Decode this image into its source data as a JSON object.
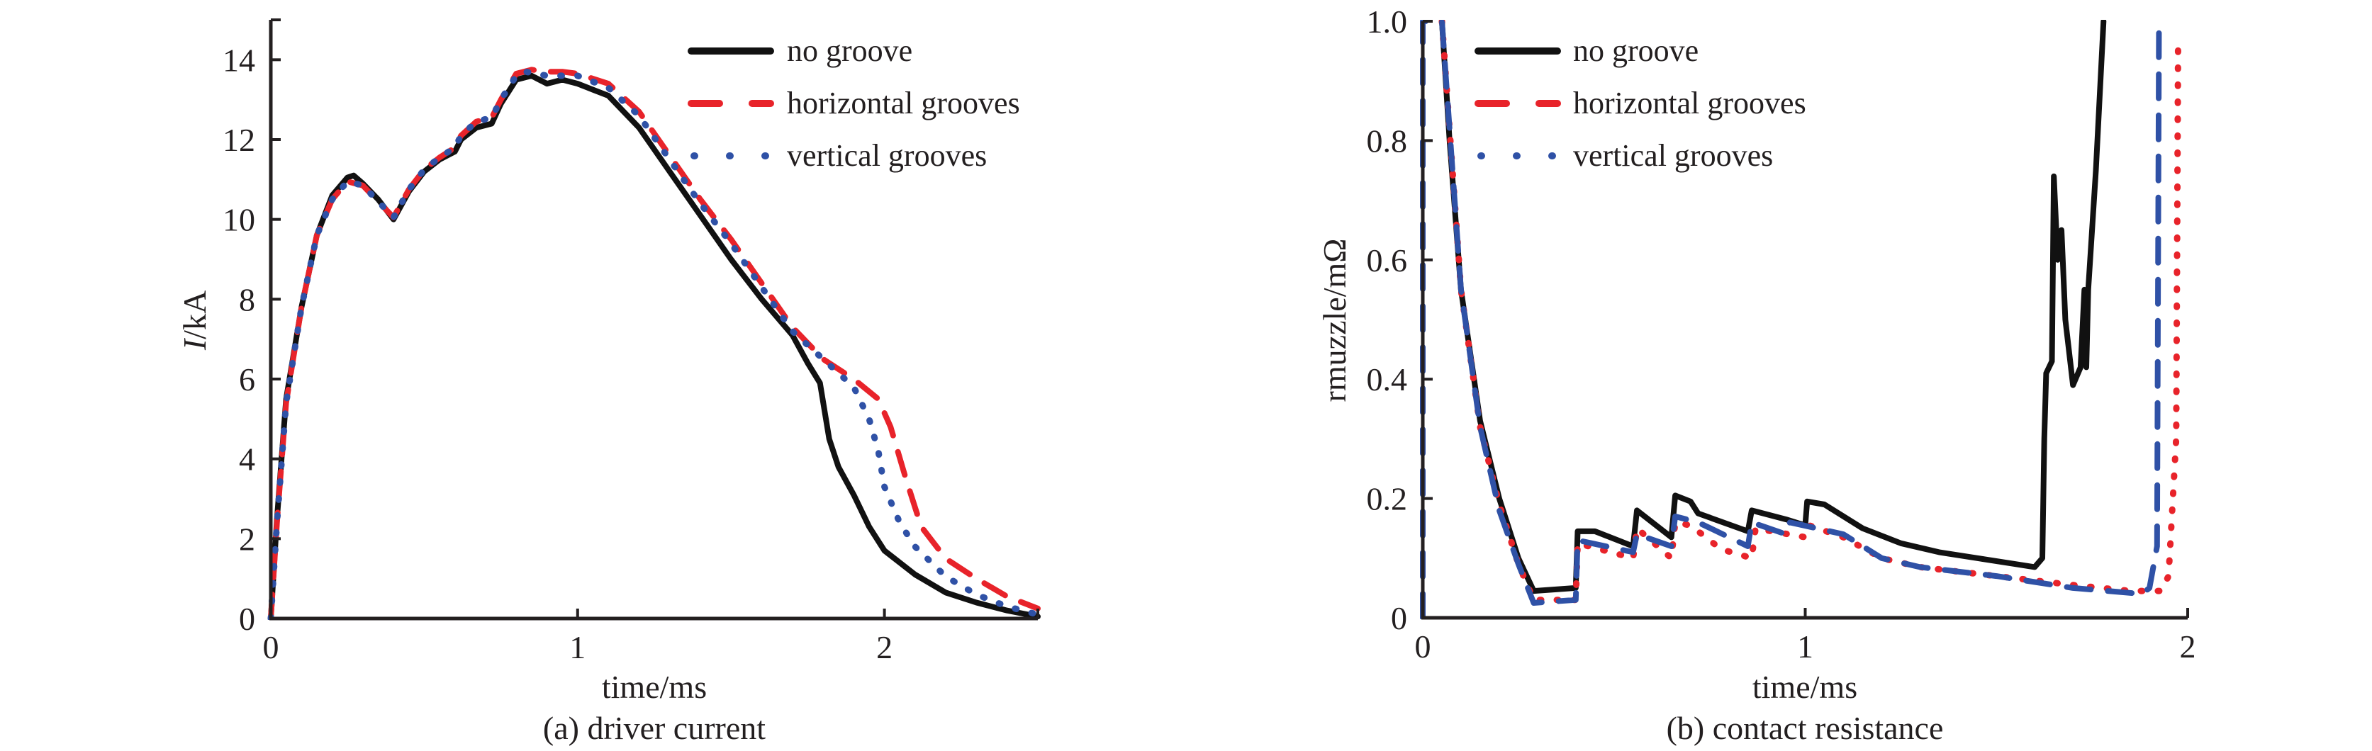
{
  "colors": {
    "no_groove": "#111111",
    "horizontal": "#e8232a",
    "vertical": "#2f51a6",
    "axis": "#231f20"
  },
  "chart_data": [
    {
      "type": "line",
      "id": "driver-current",
      "caption": "(a) driver current",
      "xlabel": "time/ms",
      "ylabel_italic": "I",
      "ylabel_rest": "/kA",
      "xlim": [
        0,
        2.5
      ],
      "ylim": [
        0,
        15
      ],
      "xticks": [
        0,
        1,
        2
      ],
      "xtick_labels": [
        "0",
        "1",
        "2"
      ],
      "yticks": [
        0,
        2,
        4,
        6,
        8,
        10,
        12,
        14
      ],
      "ytick_labels": [
        "0",
        "2",
        "4",
        "6",
        "8",
        "10",
        "12",
        "14"
      ],
      "grid": false,
      "legend_position": "top-right",
      "legend": [
        "no groove",
        "horizontal grooves",
        "vertical grooves"
      ],
      "series": [
        {
          "name": "no groove",
          "style": "solid",
          "color_key": "no_groove",
          "points": [
            [
              0,
              0
            ],
            [
              0.02,
              2.5
            ],
            [
              0.05,
              5.5
            ],
            [
              0.1,
              7.8
            ],
            [
              0.15,
              9.6
            ],
            [
              0.2,
              10.6
            ],
            [
              0.25,
              11.05
            ],
            [
              0.27,
              11.1
            ],
            [
              0.3,
              10.9
            ],
            [
              0.35,
              10.5
            ],
            [
              0.4,
              10.0
            ],
            [
              0.45,
              10.7
            ],
            [
              0.5,
              11.2
            ],
            [
              0.55,
              11.5
            ],
            [
              0.6,
              11.7
            ],
            [
              0.62,
              12.0
            ],
            [
              0.67,
              12.3
            ],
            [
              0.72,
              12.4
            ],
            [
              0.75,
              12.9
            ],
            [
              0.8,
              13.5
            ],
            [
              0.85,
              13.6
            ],
            [
              0.9,
              13.4
            ],
            [
              0.95,
              13.5
            ],
            [
              1.0,
              13.4
            ],
            [
              1.05,
              13.25
            ],
            [
              1.1,
              13.1
            ],
            [
              1.2,
              12.3
            ],
            [
              1.3,
              11.2
            ],
            [
              1.4,
              10.1
            ],
            [
              1.5,
              9.0
            ],
            [
              1.6,
              8.0
            ],
            [
              1.7,
              7.1
            ],
            [
              1.75,
              6.4
            ],
            [
              1.79,
              5.9
            ],
            [
              1.82,
              4.5
            ],
            [
              1.85,
              3.8
            ],
            [
              1.9,
              3.1
            ],
            [
              1.95,
              2.3
            ],
            [
              2.0,
              1.7
            ],
            [
              2.1,
              1.1
            ],
            [
              2.2,
              0.65
            ],
            [
              2.3,
              0.4
            ],
            [
              2.4,
              0.2
            ],
            [
              2.5,
              0.05
            ]
          ]
        },
        {
          "name": "horizontal grooves",
          "style": "dashed",
          "color_key": "horizontal",
          "points": [
            [
              0,
              0
            ],
            [
              0.02,
              2.4
            ],
            [
              0.05,
              5.4
            ],
            [
              0.1,
              7.8
            ],
            [
              0.15,
              9.6
            ],
            [
              0.2,
              10.5
            ],
            [
              0.25,
              10.95
            ],
            [
              0.3,
              10.85
            ],
            [
              0.35,
              10.45
            ],
            [
              0.4,
              10.05
            ],
            [
              0.45,
              10.75
            ],
            [
              0.5,
              11.25
            ],
            [
              0.55,
              11.55
            ],
            [
              0.6,
              11.8
            ],
            [
              0.62,
              12.1
            ],
            [
              0.67,
              12.45
            ],
            [
              0.72,
              12.55
            ],
            [
              0.75,
              13.0
            ],
            [
              0.8,
              13.65
            ],
            [
              0.85,
              13.75
            ],
            [
              0.9,
              13.7
            ],
            [
              0.95,
              13.7
            ],
            [
              1.0,
              13.65
            ],
            [
              1.1,
              13.4
            ],
            [
              1.2,
              12.7
            ],
            [
              1.3,
              11.6
            ],
            [
              1.4,
              10.5
            ],
            [
              1.5,
              9.5
            ],
            [
              1.6,
              8.4
            ],
            [
              1.7,
              7.3
            ],
            [
              1.8,
              6.5
            ],
            [
              1.9,
              6.0
            ],
            [
              1.98,
              5.5
            ],
            [
              2.02,
              4.8
            ],
            [
              2.07,
              3.5
            ],
            [
              2.12,
              2.3
            ],
            [
              2.2,
              1.5
            ],
            [
              2.3,
              1.0
            ],
            [
              2.4,
              0.55
            ],
            [
              2.5,
              0.25
            ]
          ]
        },
        {
          "name": "vertical grooves",
          "style": "dotted",
          "color_key": "vertical",
          "points": [
            [
              0,
              0
            ],
            [
              0.02,
              2.4
            ],
            [
              0.05,
              5.4
            ],
            [
              0.1,
              7.8
            ],
            [
              0.15,
              9.6
            ],
            [
              0.2,
              10.5
            ],
            [
              0.25,
              10.95
            ],
            [
              0.3,
              10.85
            ],
            [
              0.35,
              10.45
            ],
            [
              0.4,
              10.05
            ],
            [
              0.45,
              10.75
            ],
            [
              0.5,
              11.25
            ],
            [
              0.55,
              11.55
            ],
            [
              0.6,
              11.8
            ],
            [
              0.62,
              12.1
            ],
            [
              0.67,
              12.45
            ],
            [
              0.72,
              12.55
            ],
            [
              0.75,
              13.0
            ],
            [
              0.8,
              13.6
            ],
            [
              0.83,
              13.7
            ],
            [
              0.9,
              13.6
            ],
            [
              1.0,
              13.6
            ],
            [
              1.1,
              13.3
            ],
            [
              1.2,
              12.6
            ],
            [
              1.3,
              11.5
            ],
            [
              1.4,
              10.4
            ],
            [
              1.5,
              9.4
            ],
            [
              1.6,
              8.3
            ],
            [
              1.7,
              7.2
            ],
            [
              1.8,
              6.5
            ],
            [
              1.9,
              5.8
            ],
            [
              1.95,
              5.0
            ],
            [
              1.98,
              4.2
            ],
            [
              2.0,
              3.3
            ],
            [
              2.05,
              2.4
            ],
            [
              2.1,
              1.8
            ],
            [
              2.2,
              1.05
            ],
            [
              2.3,
              0.6
            ],
            [
              2.4,
              0.3
            ],
            [
              2.5,
              0.1
            ]
          ]
        }
      ]
    },
    {
      "type": "line",
      "id": "contact-resistance",
      "caption": "(b) contact resistance",
      "xlabel": "time/ms",
      "ylabel_italic": "",
      "ylabel_rest": "rmuzzle/mΩ",
      "xlim": [
        0,
        2
      ],
      "ylim": [
        0,
        1.0
      ],
      "xticks": [
        0,
        1,
        2
      ],
      "xtick_labels": [
        "0",
        "1",
        "2"
      ],
      "yticks": [
        0,
        0.2,
        0.4,
        0.6,
        0.8,
        1.0
      ],
      "ytick_labels": [
        "0",
        "0.2",
        "0.4",
        "0.6",
        "0.8",
        "1.0"
      ],
      "grid": false,
      "legend_position": "top-left",
      "legend": [
        "no groove",
        "horizontal grooves",
        "vertical grooves"
      ],
      "series": [
        {
          "name": "no groove",
          "style": "solid",
          "color_key": "no_groove",
          "points": [
            [
              0.05,
              1.0
            ],
            [
              0.07,
              0.8
            ],
            [
              0.1,
              0.55
            ],
            [
              0.15,
              0.33
            ],
            [
              0.2,
              0.2
            ],
            [
              0.25,
              0.1
            ],
            [
              0.29,
              0.045
            ],
            [
              0.4,
              0.05
            ],
            [
              0.405,
              0.145
            ],
            [
              0.45,
              0.145
            ],
            [
              0.55,
              0.12
            ],
            [
              0.56,
              0.18
            ],
            [
              0.65,
              0.135
            ],
            [
              0.66,
              0.205
            ],
            [
              0.7,
              0.195
            ],
            [
              0.72,
              0.175
            ],
            [
              0.85,
              0.145
            ],
            [
              0.86,
              0.18
            ],
            [
              0.95,
              0.165
            ],
            [
              1.0,
              0.155
            ],
            [
              1.005,
              0.195
            ],
            [
              1.05,
              0.19
            ],
            [
              1.15,
              0.15
            ],
            [
              1.25,
              0.125
            ],
            [
              1.35,
              0.11
            ],
            [
              1.45,
              0.1
            ],
            [
              1.55,
              0.09
            ],
            [
              1.6,
              0.085
            ],
            [
              1.62,
              0.1
            ],
            [
              1.625,
              0.3
            ],
            [
              1.63,
              0.41
            ],
            [
              1.645,
              0.43
            ],
            [
              1.65,
              0.74
            ],
            [
              1.66,
              0.6
            ],
            [
              1.67,
              0.65
            ],
            [
              1.68,
              0.5
            ],
            [
              1.7,
              0.39
            ],
            [
              1.72,
              0.42
            ],
            [
              1.73,
              0.55
            ],
            [
              1.735,
              0.42
            ],
            [
              1.74,
              0.55
            ],
            [
              1.75,
              0.65
            ],
            [
              1.76,
              0.75
            ],
            [
              1.78,
              1.0
            ]
          ]
        },
        {
          "name": "horizontal grooves",
          "style": "dotted",
          "color_key": "horizontal",
          "points": [
            [
              0.05,
              1.0
            ],
            [
              0.1,
              0.55
            ],
            [
              0.15,
              0.32
            ],
            [
              0.2,
              0.19
            ],
            [
              0.25,
              0.09
            ],
            [
              0.29,
              0.03
            ],
            [
              0.4,
              0.03
            ],
            [
              0.405,
              0.125
            ],
            [
              0.55,
              0.1
            ],
            [
              0.56,
              0.15
            ],
            [
              0.65,
              0.1
            ],
            [
              0.66,
              0.16
            ],
            [
              0.7,
              0.155
            ],
            [
              0.78,
              0.115
            ],
            [
              0.86,
              0.1
            ],
            [
              0.87,
              0.15
            ],
            [
              1.0,
              0.135
            ],
            [
              1.01,
              0.155
            ],
            [
              1.1,
              0.135
            ],
            [
              1.2,
              0.1
            ],
            [
              1.3,
              0.085
            ],
            [
              1.5,
              0.07
            ],
            [
              1.7,
              0.055
            ],
            [
              1.85,
              0.045
            ],
            [
              1.93,
              0.045
            ],
            [
              1.95,
              0.07
            ],
            [
              1.97,
              0.3
            ],
            [
              1.975,
              0.97
            ]
          ]
        },
        {
          "name": "vertical grooves",
          "style": "dashed",
          "color_key": "vertical",
          "points": [
            [
              0,
              0
            ],
            [
              0,
              1.0
            ],
            [
              0.05,
              1.0
            ],
            [
              0.1,
              0.55
            ],
            [
              0.15,
              0.32
            ],
            [
              0.2,
              0.18
            ],
            [
              0.25,
              0.09
            ],
            [
              0.29,
              0.025
            ],
            [
              0.4,
              0.03
            ],
            [
              0.405,
              0.13
            ],
            [
              0.55,
              0.11
            ],
            [
              0.56,
              0.14
            ],
            [
              0.65,
              0.12
            ],
            [
              0.66,
              0.17
            ],
            [
              0.72,
              0.16
            ],
            [
              0.85,
              0.12
            ],
            [
              0.86,
              0.16
            ],
            [
              0.95,
              0.14
            ],
            [
              0.96,
              0.16
            ],
            [
              1.1,
              0.14
            ],
            [
              1.2,
              0.1
            ],
            [
              1.3,
              0.085
            ],
            [
              1.5,
              0.07
            ],
            [
              1.7,
              0.05
            ],
            [
              1.88,
              0.04
            ],
            [
              1.9,
              0.05
            ],
            [
              1.92,
              0.12
            ],
            [
              1.925,
              1.0
            ]
          ]
        }
      ]
    }
  ]
}
